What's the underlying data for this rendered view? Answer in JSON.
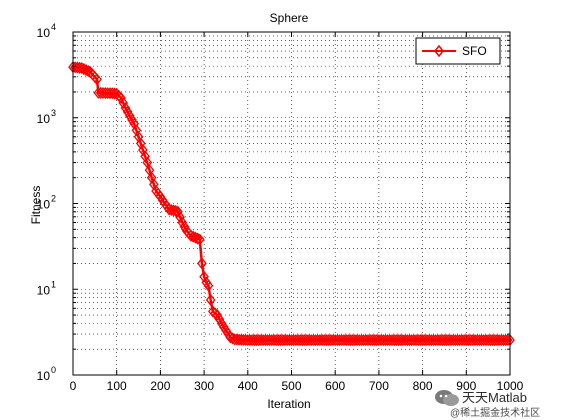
{
  "chart_data": {
    "type": "line",
    "title": "Sphere",
    "xlabel": "Iteration",
    "ylabel": "Fitness",
    "xlim": [
      0,
      1000
    ],
    "ylim": [
      1,
      10000
    ],
    "yscale": "log",
    "grid": true,
    "legend_position": "top-right",
    "x_ticks": [
      "0",
      "100",
      "200",
      "300",
      "400",
      "500",
      "600",
      "700",
      "800",
      "900",
      "1000"
    ],
    "y_ticks": [
      {
        "base": "10",
        "exp": "0"
      },
      {
        "base": "10",
        "exp": "1"
      },
      {
        "base": "10",
        "exp": "2"
      },
      {
        "base": "10",
        "exp": "3"
      },
      {
        "base": "10",
        "exp": "4"
      }
    ],
    "series": [
      {
        "name": "SFO",
        "color": "#ff0000",
        "marker": "diamond",
        "points": [
          [
            0,
            3900
          ],
          [
            20,
            3800
          ],
          [
            40,
            3400
          ],
          [
            55,
            2800
          ],
          [
            58,
            1950
          ],
          [
            90,
            1930
          ],
          [
            100,
            1900
          ],
          [
            110,
            1700
          ],
          [
            120,
            1300
          ],
          [
            140,
            850
          ],
          [
            150,
            600
          ],
          [
            160,
            420
          ],
          [
            170,
            300
          ],
          [
            180,
            200
          ],
          [
            190,
            140
          ],
          [
            200,
            120
          ],
          [
            210,
            100
          ],
          [
            220,
            85
          ],
          [
            235,
            82
          ],
          [
            240,
            80
          ],
          [
            250,
            60
          ],
          [
            260,
            48
          ],
          [
            270,
            42
          ],
          [
            280,
            40
          ],
          [
            290,
            38
          ],
          [
            295,
            20
          ],
          [
            300,
            14
          ],
          [
            305,
            12
          ],
          [
            310,
            11
          ],
          [
            315,
            7.5
          ],
          [
            320,
            5.5
          ],
          [
            330,
            5
          ],
          [
            340,
            4
          ],
          [
            350,
            3.3
          ],
          [
            360,
            2.75
          ],
          [
            370,
            2.6
          ],
          [
            400,
            2.55
          ],
          [
            500,
            2.55
          ],
          [
            600,
            2.55
          ],
          [
            700,
            2.55
          ],
          [
            800,
            2.55
          ],
          [
            900,
            2.55
          ],
          [
            1000,
            2.55
          ]
        ]
      }
    ]
  },
  "watermark": {
    "title": "天天Matlab",
    "subtitle": "@稀土掘金技术社区"
  }
}
